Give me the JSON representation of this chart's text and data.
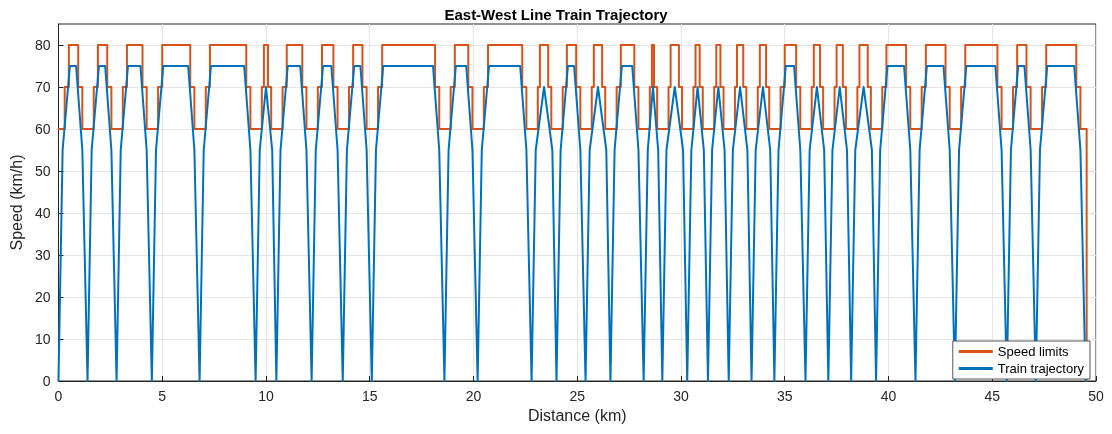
{
  "chart_data": {
    "type": "line",
    "title": "East-West Line Train Trajectory",
    "xlabel": "Distance (km)",
    "ylabel": "Speed (km/h)",
    "xlim": [
      0,
      50
    ],
    "xticks": [
      0,
      5,
      10,
      15,
      20,
      25,
      30,
      35,
      40,
      45,
      50
    ],
    "ylim": [
      0,
      85
    ],
    "yticks": [
      0,
      10,
      20,
      30,
      40,
      50,
      60,
      70,
      80
    ],
    "grid": true,
    "legend": "bottom right",
    "marker": "none",
    "series": [
      {
        "name": "Speed limits",
        "color": "#d95319",
        "type": "step",
        "x": [
          0,
          0.3,
          0.5,
          0.95,
          1.15,
          1.7,
          1.9,
          2.35,
          2.55,
          3.1,
          3.3,
          4.05,
          4.25,
          4.8,
          5.0,
          6.35,
          6.55,
          7.1,
          7.3,
          9.05,
          9.25,
          9.8,
          9.9,
          10.1,
          10.25,
          10.8,
          11.0,
          11.75,
          11.95,
          12.5,
          12.7,
          13.25,
          13.45,
          14.0,
          14.2,
          14.65,
          14.85,
          15.4,
          15.6,
          18.15,
          18.35,
          18.9,
          19.1,
          19.75,
          19.95,
          20.5,
          20.7,
          22.35,
          22.55,
          23.1,
          23.2,
          23.6,
          23.75,
          24.3,
          24.5,
          24.95,
          25.15,
          25.7,
          25.8,
          26.2,
          26.35,
          26.9,
          27.1,
          27.75,
          27.95,
          28.5,
          28.6,
          28.7,
          28.85,
          29.4,
          29.5,
          29.9,
          30.05,
          30.6,
          30.7,
          30.9,
          31.05,
          31.6,
          31.7,
          31.9,
          32.05,
          32.6,
          32.7,
          33.0,
          33.15,
          33.7,
          33.8,
          34.1,
          34.25,
          34.8,
          35.0,
          35.55,
          35.75,
          36.3,
          36.4,
          36.7,
          36.85,
          37.4,
          37.5,
          37.8,
          37.95,
          38.5,
          38.6,
          39.0,
          39.15,
          39.7,
          39.9,
          40.85,
          41.05,
          41.6,
          41.8,
          42.75,
          42.95,
          43.5,
          43.7,
          45.25,
          45.45,
          46.0,
          46.2,
          46.65,
          46.85,
          47.4,
          47.6,
          49.05,
          49.25,
          49.55
        ],
        "values": [
          60,
          70,
          80,
          70,
          60,
          70,
          80,
          70,
          60,
          70,
          80,
          70,
          60,
          70,
          80,
          70,
          60,
          70,
          80,
          70,
          60,
          70,
          80,
          70,
          60,
          70,
          80,
          70,
          60,
          70,
          80,
          70,
          60,
          70,
          80,
          70,
          60,
          70,
          80,
          70,
          60,
          70,
          80,
          70,
          60,
          70,
          80,
          70,
          60,
          70,
          80,
          70,
          60,
          70,
          80,
          70,
          60,
          70,
          80,
          70,
          60,
          70,
          80,
          70,
          60,
          70,
          80,
          70,
          60,
          70,
          80,
          70,
          60,
          70,
          80,
          70,
          60,
          70,
          80,
          70,
          60,
          70,
          80,
          70,
          60,
          70,
          80,
          70,
          60,
          70,
          80,
          70,
          60,
          70,
          80,
          70,
          60,
          70,
          80,
          70,
          60,
          70,
          80,
          70,
          60,
          70,
          80,
          70,
          60,
          70,
          80,
          70,
          60,
          70,
          80,
          70,
          60,
          70,
          80,
          70,
          60,
          70,
          80,
          70,
          60,
          0
        ]
      },
      {
        "name": "Train trajectory",
        "color": "#0072bd",
        "x": [
          0,
          0.2,
          0.55,
          0.85,
          1.15,
          1.4,
          1.6,
          1.95,
          2.25,
          2.55,
          2.8,
          3.0,
          3.35,
          3.95,
          4.25,
          4.5,
          4.7,
          5.05,
          6.25,
          6.55,
          6.8,
          7.0,
          7.35,
          8.95,
          9.25,
          9.5,
          9.7,
          10.0,
          10.3,
          10.5,
          10.7,
          11.05,
          11.65,
          11.95,
          12.2,
          12.4,
          12.75,
          13.15,
          13.45,
          13.7,
          13.9,
          14.25,
          14.55,
          14.85,
          15.1,
          15.3,
          15.65,
          18.05,
          18.35,
          18.6,
          18.8,
          19.15,
          19.65,
          19.95,
          20.2,
          20.4,
          20.75,
          22.25,
          22.55,
          22.8,
          23.0,
          23.4,
          23.8,
          24.0,
          24.2,
          24.55,
          24.85,
          25.15,
          25.4,
          25.6,
          26.0,
          26.4,
          26.6,
          26.8,
          27.15,
          27.65,
          27.95,
          28.2,
          28.4,
          28.65,
          28.9,
          29.1,
          29.3,
          29.7,
          30.1,
          30.3,
          30.5,
          30.8,
          31.1,
          31.3,
          31.5,
          31.8,
          32.1,
          32.3,
          32.5,
          32.85,
          33.2,
          33.4,
          33.6,
          33.95,
          34.3,
          34.5,
          34.7,
          35.05,
          35.45,
          35.75,
          36.0,
          36.2,
          36.55,
          36.9,
          37.1,
          37.3,
          37.65,
          38.0,
          38.2,
          38.4,
          38.8,
          39.2,
          39.4,
          39.6,
          39.95,
          40.75,
          41.05,
          41.3,
          41.5,
          41.85,
          42.65,
          42.95,
          43.2,
          43.4,
          43.75,
          45.15,
          45.45,
          45.7,
          45.9,
          46.25,
          46.55,
          46.85,
          47.1,
          47.3,
          47.65,
          48.95,
          49.25,
          49.5
        ],
        "values": [
          0,
          55,
          75,
          75,
          55,
          0,
          55,
          75,
          75,
          55,
          0,
          55,
          75,
          75,
          55,
          0,
          55,
          75,
          75,
          55,
          0,
          55,
          75,
          75,
          55,
          0,
          55,
          70,
          55,
          0,
          55,
          75,
          75,
          55,
          0,
          55,
          75,
          75,
          55,
          0,
          55,
          75,
          75,
          55,
          0,
          55,
          75,
          75,
          55,
          0,
          55,
          75,
          75,
          55,
          0,
          55,
          75,
          75,
          55,
          0,
          55,
          70,
          55,
          0,
          55,
          75,
          75,
          55,
          0,
          55,
          70,
          55,
          0,
          55,
          75,
          75,
          55,
          0,
          55,
          70,
          55,
          0,
          55,
          70,
          55,
          0,
          55,
          70,
          55,
          0,
          55,
          70,
          55,
          0,
          55,
          70,
          55,
          0,
          55,
          70,
          55,
          0,
          55,
          75,
          75,
          55,
          0,
          55,
          70,
          55,
          0,
          55,
          70,
          55,
          0,
          55,
          70,
          55,
          0,
          55,
          75,
          75,
          55,
          0,
          55,
          75,
          75,
          55,
          0,
          55,
          75,
          75,
          55,
          0,
          55,
          75,
          75,
          55,
          0,
          55,
          75,
          75,
          55,
          0
        ]
      }
    ]
  }
}
